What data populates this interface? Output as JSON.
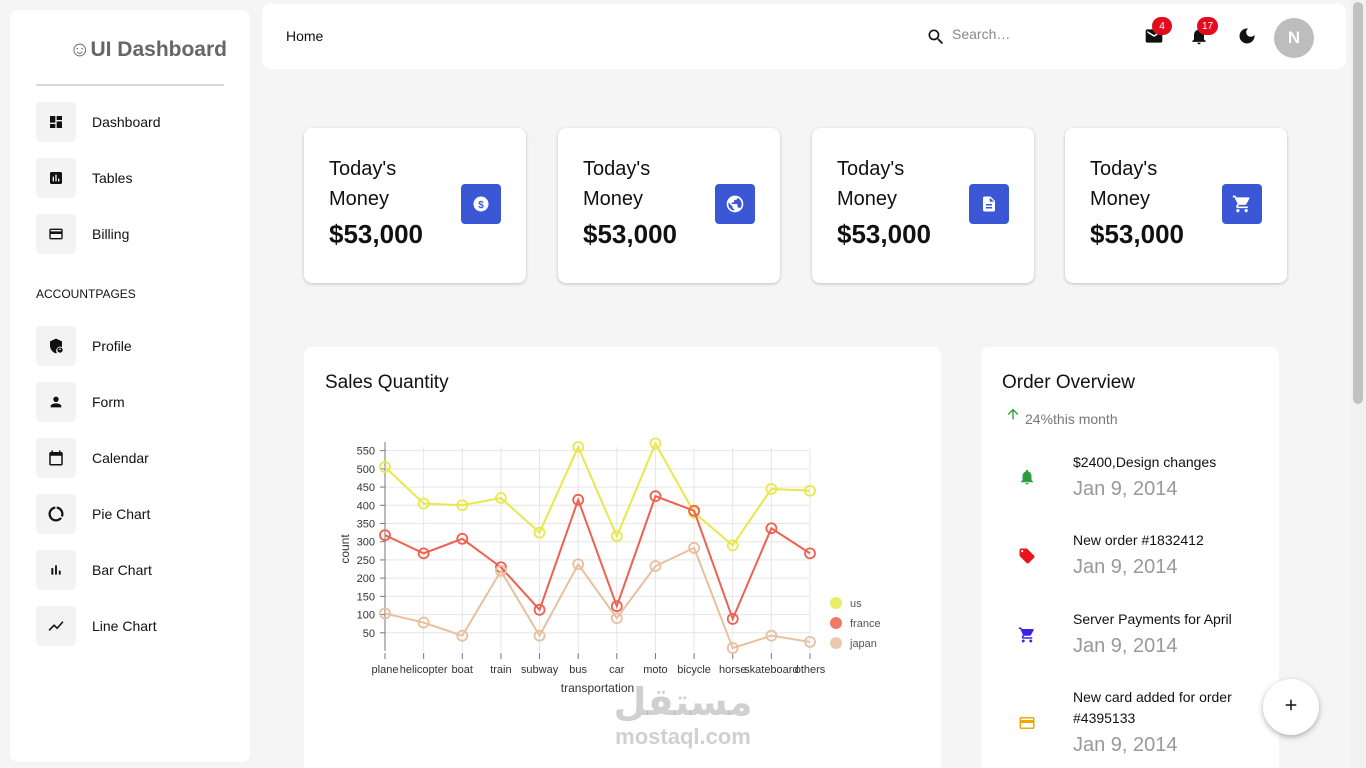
{
  "sidebar": {
    "brand": "☺UI Dashboard",
    "items": [
      {
        "label": "Dashboard",
        "icon": "dashboard-icon"
      },
      {
        "label": "Tables",
        "icon": "table-chart-icon"
      },
      {
        "label": "Billing",
        "icon": "credit-card-icon"
      }
    ],
    "section_title": "ACCOUNTPAGES",
    "account_items": [
      {
        "label": "Profile",
        "icon": "shield-person-icon"
      },
      {
        "label": "Form",
        "icon": "person-icon"
      },
      {
        "label": "Calendar",
        "icon": "calendar-icon"
      },
      {
        "label": "Pie Chart",
        "icon": "donut-icon"
      },
      {
        "label": "Bar Chart",
        "icon": "bar-chart-icon"
      },
      {
        "label": "Line Chart",
        "icon": "trend-line-icon"
      }
    ]
  },
  "header": {
    "breadcrumb": "Home",
    "search_placeholder": "Search…",
    "mail_count": "4",
    "notification_count": "17",
    "avatar_initial": "N"
  },
  "stats": [
    {
      "title": "Today's Money",
      "value": "$53,000",
      "icon": "dollar-icon"
    },
    {
      "title": "Today's Money",
      "value": "$53,000",
      "icon": "globe-icon"
    },
    {
      "title": "Today's Money",
      "value": "$53,000",
      "icon": "document-icon"
    },
    {
      "title": "Today's Money",
      "value": "$53,000",
      "icon": "cart-icon"
    }
  ],
  "stat_icon_color": "#3b57d6",
  "sales": {
    "title": "Sales Quantity"
  },
  "chart_data": {
    "type": "line",
    "xlabel": "transportation",
    "ylabel": "count",
    "categories": [
      "plane",
      "helicopter",
      "boat",
      "train",
      "subway",
      "bus",
      "car",
      "moto",
      "bicycle",
      "horse",
      "skateboard",
      "others"
    ],
    "yticks": [
      50,
      100,
      150,
      200,
      250,
      300,
      350,
      400,
      450,
      500,
      550
    ],
    "ylim": [
      0,
      560
    ],
    "grid": true,
    "legend_position": "right",
    "series": [
      {
        "name": "us",
        "color": "#e8e84a",
        "values": [
          505,
          405,
          400,
          420,
          325,
          560,
          315,
          570,
          380,
          290,
          445,
          440
        ]
      },
      {
        "name": "france",
        "color": "#f06050",
        "values": [
          318,
          268,
          308,
          230,
          113,
          415,
          123,
          425,
          385,
          88,
          337,
          268
        ]
      },
      {
        "name": "japan",
        "color": "#e8c0a0",
        "values": [
          103,
          78,
          42,
          220,
          42,
          238,
          90,
          233,
          283,
          8,
          42,
          25
        ]
      }
    ]
  },
  "orders": {
    "title": "Order Overview",
    "subtitle": "24%this month",
    "items": [
      {
        "title": "$2400,Design changes",
        "date": "Jan 9, 2014",
        "icon": "bell-icon",
        "color": "#2e9c3a"
      },
      {
        "title": "New order #1832412",
        "date": "Jan 9, 2014",
        "icon": "tag-icon",
        "color": "#e8131f"
      },
      {
        "title": "Server Payments for April",
        "date": "Jan 9, 2014",
        "icon": "cart-icon",
        "color": "#3b23e6"
      },
      {
        "title": "New card added for order #4395133",
        "date": "Jan 9, 2014",
        "icon": "credit-card-icon",
        "color": "#f0a800"
      }
    ]
  },
  "watermark": {
    "arabic": "مستقل",
    "latin": "mostaql.com"
  }
}
